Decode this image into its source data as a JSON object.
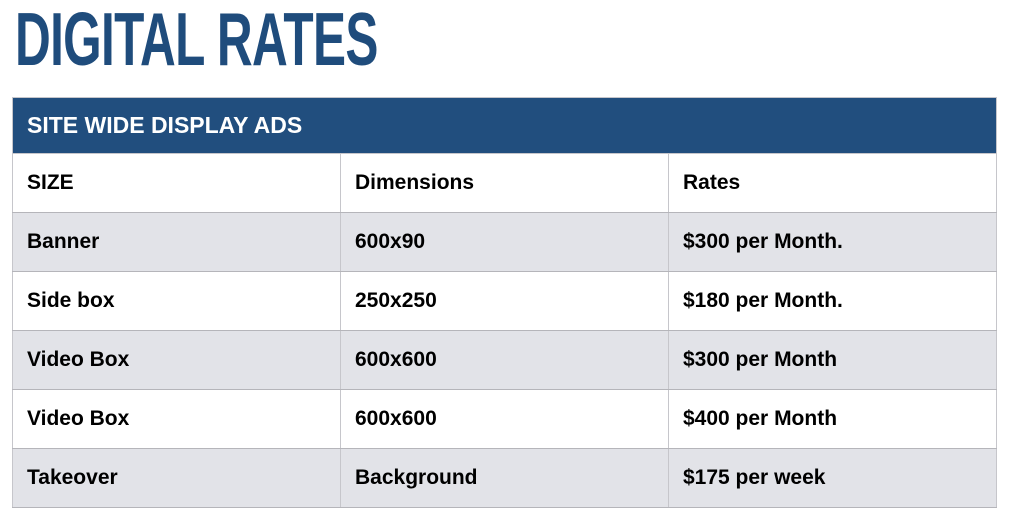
{
  "page": {
    "title": "DIGITAL RATES"
  },
  "table": {
    "section_header": "SITE WIDE DISPLAY ADS",
    "columns": [
      "SIZE",
      "Dimensions",
      "Rates"
    ],
    "rows": [
      {
        "size": "Banner",
        "dimensions": "600x90",
        "rate": "$300 per Month."
      },
      {
        "size": "Side box",
        "dimensions": "250x250",
        "rate": "$180 per Month."
      },
      {
        "size": "Video Box",
        "dimensions": "600x600",
        "rate": "$300 per Month"
      },
      {
        "size": "Video Box",
        "dimensions": "600x600",
        "rate": "$400 per Month"
      },
      {
        "size": "Takeover",
        "dimensions": "Background",
        "rate": "$175 per week"
      }
    ]
  },
  "colors": {
    "accent_blue": "#214e7e",
    "title_blue": "#1f4c7c",
    "row_alt_gray": "#e2e3e8",
    "border_gray": "#b5b5ba"
  }
}
